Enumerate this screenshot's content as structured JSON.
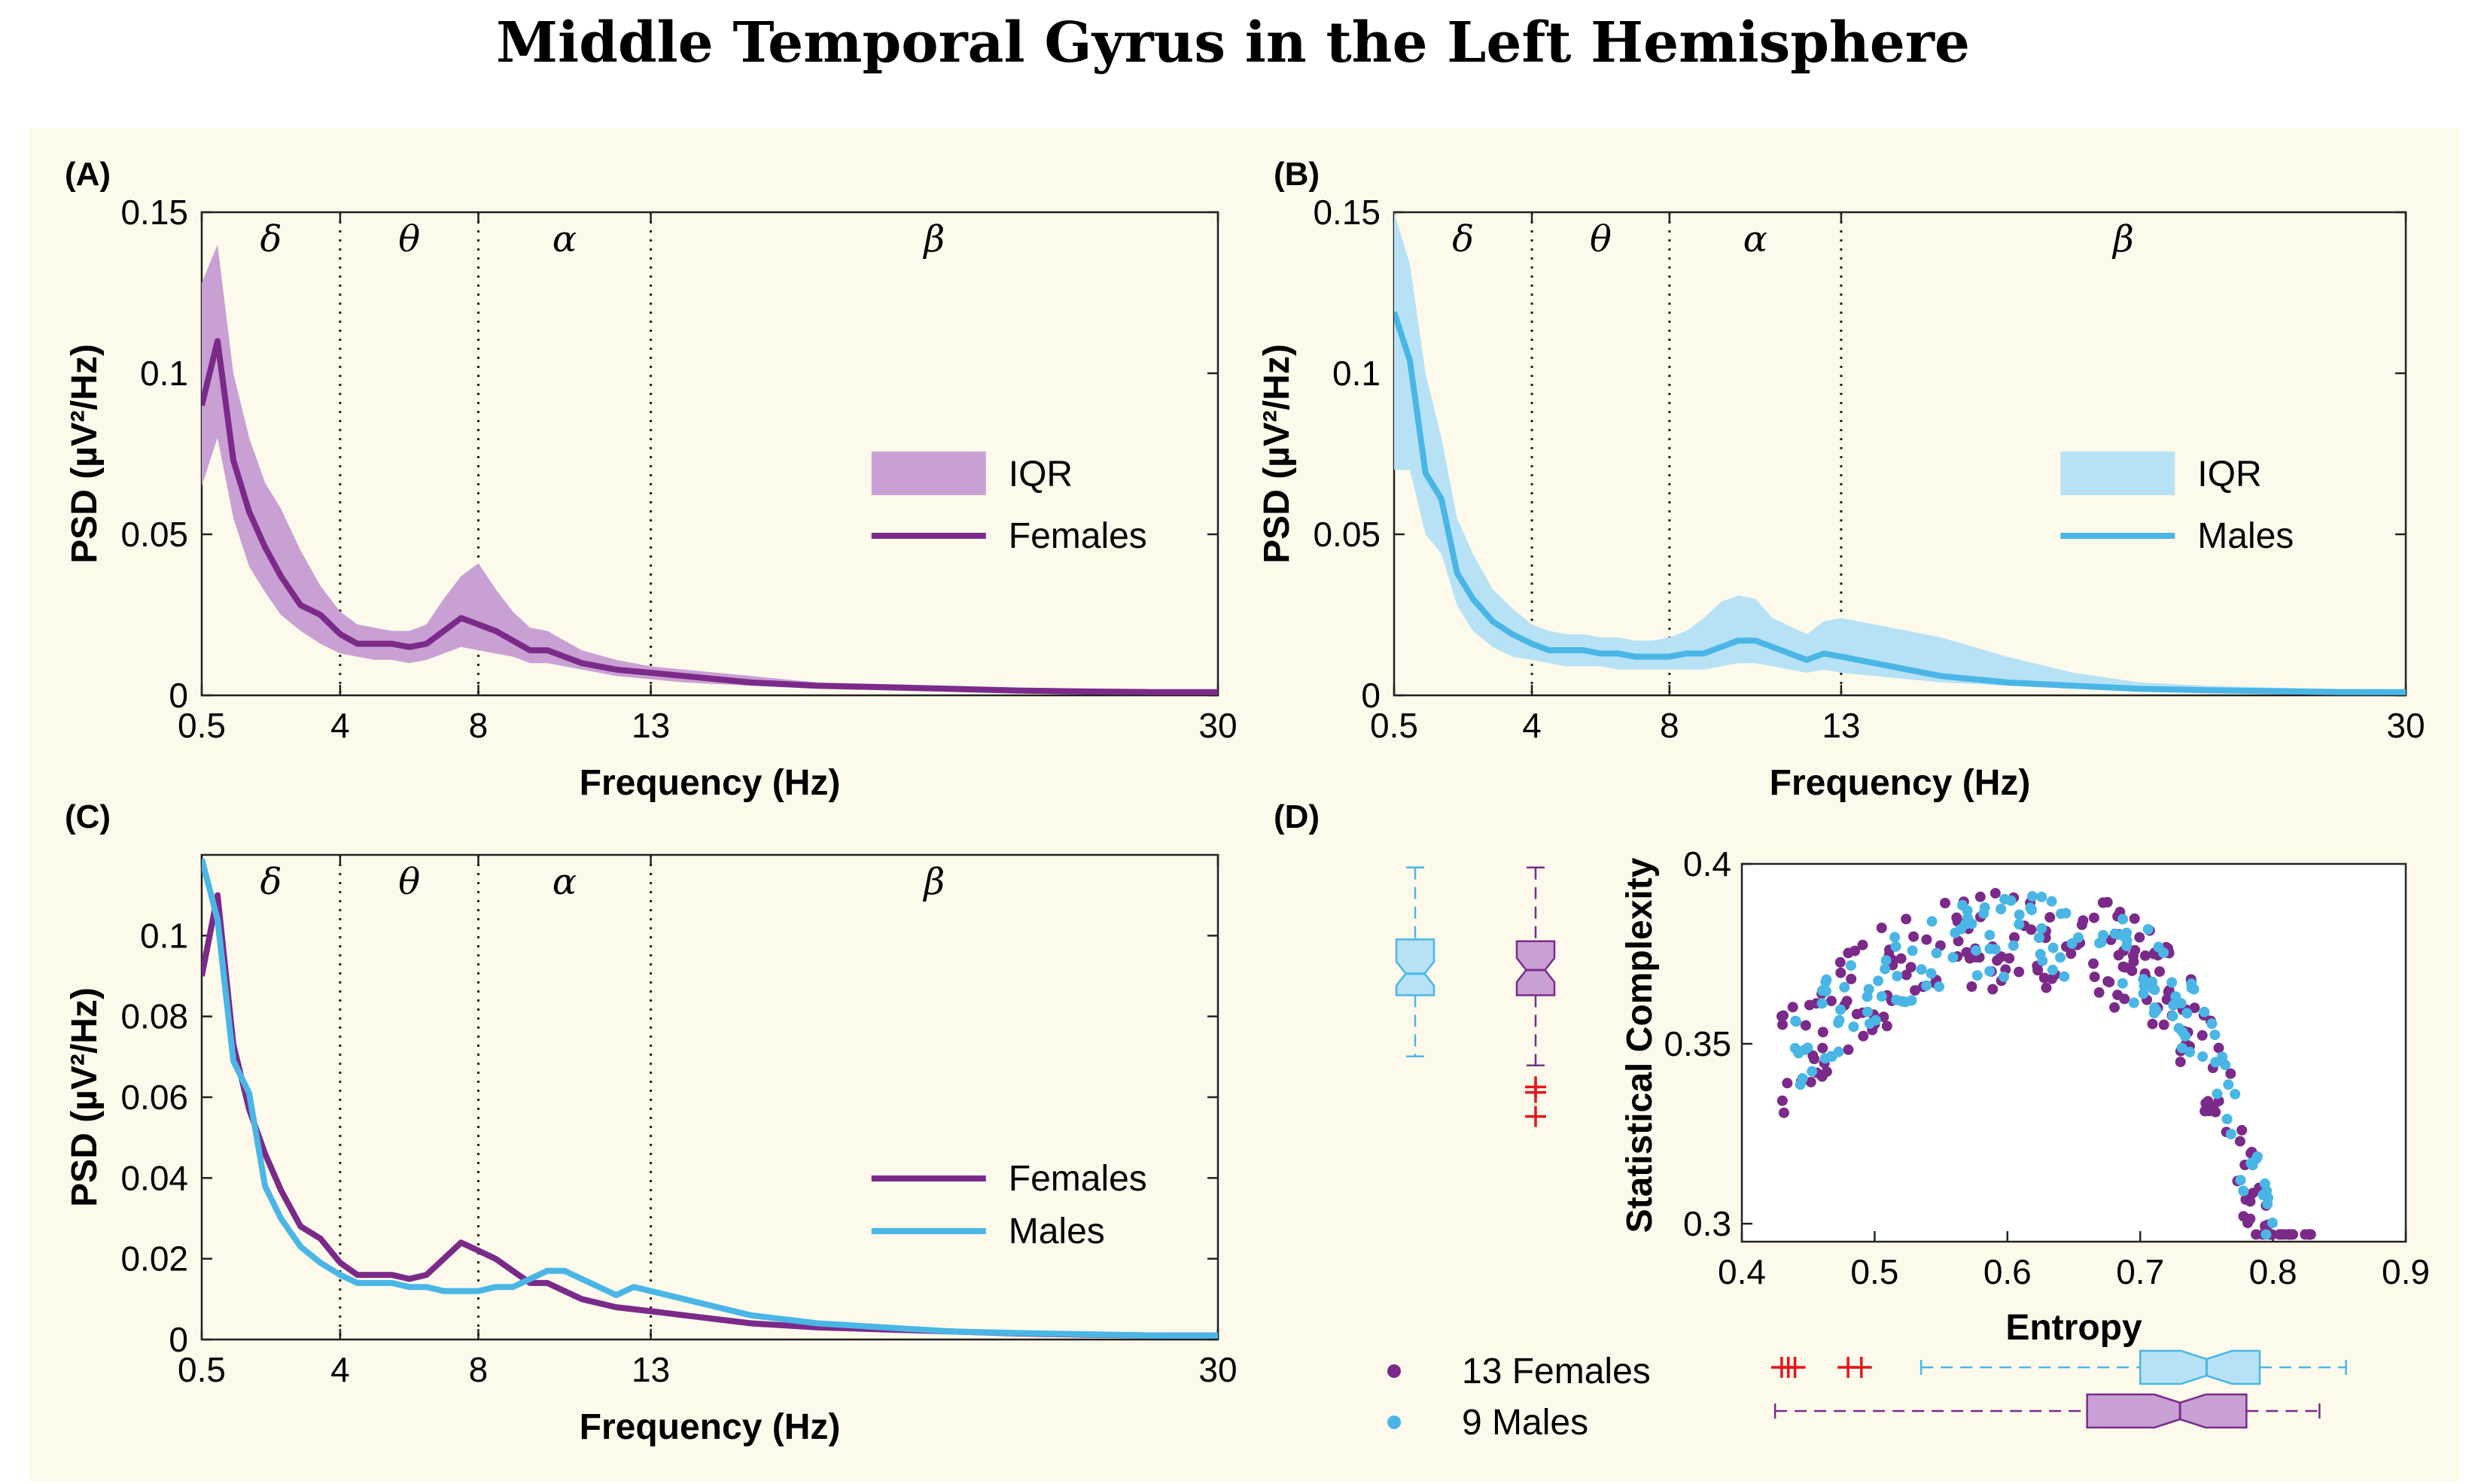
{
  "title": "Middle Temporal Gyrus in the Left Hemisphere",
  "colors": {
    "females": "#7b2a8a",
    "females_fill": "#c9a0d3",
    "males": "#49b6e6",
    "males_fill": "#b7e2f5",
    "outlier": "#e8141b",
    "background": "#fdfaeb"
  },
  "bands": [
    {
      "symbol": "δ",
      "range": [
        0.5,
        4
      ]
    },
    {
      "symbol": "θ",
      "range": [
        4,
        8
      ]
    },
    {
      "symbol": "α",
      "range": [
        8,
        13
      ]
    },
    {
      "symbol": "β",
      "range": [
        13,
        30
      ]
    }
  ],
  "chart_data": [
    {
      "panel": "(A)",
      "type": "line",
      "xlabel": "Frequency (Hz)",
      "ylabel": "PSD (µV²/Hz)",
      "xticks": [
        "0.5",
        "4",
        "8",
        "13",
        "30"
      ],
      "yticks": [
        "0",
        "0.05",
        "0.1",
        "0.15"
      ],
      "ylim": [
        0,
        0.15
      ],
      "xlim": [
        0.5,
        30
      ],
      "legend": "right",
      "legend_entries": [
        "IQR",
        "Females"
      ],
      "x": [
        0.5,
        0.9,
        1.3,
        1.7,
        2.1,
        2.5,
        3.0,
        3.5,
        4.0,
        4.5,
        5.0,
        5.5,
        6.0,
        6.5,
        7.0,
        7.5,
        8.0,
        8.5,
        9.0,
        9.5,
        10.0,
        10.5,
        11.0,
        12.0,
        13.0,
        14.0,
        16.0,
        18.0,
        20.0,
        22.0,
        24.0,
        26.0,
        28.0,
        30.0
      ],
      "series": [
        {
          "name": "Females",
          "values": [
            0.09,
            0.11,
            0.073,
            0.057,
            0.046,
            0.037,
            0.028,
            0.025,
            0.019,
            0.016,
            0.016,
            0.016,
            0.015,
            0.016,
            0.02,
            0.024,
            0.022,
            0.02,
            0.017,
            0.014,
            0.014,
            0.012,
            0.01,
            0.008,
            0.007,
            0.006,
            0.004,
            0.003,
            0.0025,
            0.002,
            0.0015,
            0.0012,
            0.001,
            0.001
          ],
          "iqr_low": [
            0.065,
            0.08,
            0.055,
            0.04,
            0.032,
            0.025,
            0.02,
            0.016,
            0.013,
            0.012,
            0.011,
            0.011,
            0.01,
            0.011,
            0.013,
            0.015,
            0.014,
            0.013,
            0.012,
            0.01,
            0.01,
            0.009,
            0.008,
            0.006,
            0.005,
            0.004,
            0.003,
            0.002,
            0.0018,
            0.0014,
            0.001,
            0.0008,
            0.0006,
            0.0005
          ],
          "iqr_high": [
            0.128,
            0.14,
            0.1,
            0.08,
            0.066,
            0.058,
            0.045,
            0.034,
            0.026,
            0.022,
            0.021,
            0.02,
            0.02,
            0.022,
            0.03,
            0.037,
            0.041,
            0.033,
            0.026,
            0.021,
            0.02,
            0.017,
            0.014,
            0.011,
            0.009,
            0.008,
            0.006,
            0.004,
            0.0035,
            0.003,
            0.0022,
            0.0018,
            0.0015,
            0.0014
          ]
        }
      ]
    },
    {
      "panel": "(B)",
      "type": "line",
      "xlabel": "Frequency (Hz)",
      "ylabel": "PSD (µV²/Hz)",
      "xticks": [
        "0.5",
        "4",
        "8",
        "13",
        "30"
      ],
      "yticks": [
        "0",
        "0.05",
        "0.1",
        "0.15"
      ],
      "ylim": [
        0,
        0.15
      ],
      "xlim": [
        0.5,
        30
      ],
      "legend": "right",
      "legend_entries": [
        "IQR",
        "Males"
      ],
      "x": [
        0.5,
        0.9,
        1.3,
        1.7,
        2.1,
        2.5,
        3.0,
        3.5,
        4.0,
        4.5,
        5.0,
        5.5,
        6.0,
        6.5,
        7.0,
        7.5,
        8.0,
        8.5,
        9.0,
        9.5,
        10.0,
        10.5,
        11.0,
        12.0,
        12.5,
        13.0,
        14.0,
        15.0,
        16.0,
        18.0,
        20.0,
        22.0,
        24.0,
        26.0,
        28.0,
        30.0
      ],
      "series": [
        {
          "name": "Males",
          "values": [
            0.119,
            0.104,
            0.069,
            0.061,
            0.038,
            0.03,
            0.023,
            0.019,
            0.016,
            0.014,
            0.014,
            0.014,
            0.013,
            0.013,
            0.012,
            0.012,
            0.012,
            0.013,
            0.013,
            0.015,
            0.017,
            0.017,
            0.015,
            0.011,
            0.013,
            0.012,
            0.01,
            0.008,
            0.006,
            0.004,
            0.003,
            0.002,
            0.0016,
            0.0013,
            0.001,
            0.001
          ],
          "iqr_low": [
            0.07,
            0.07,
            0.05,
            0.044,
            0.028,
            0.02,
            0.015,
            0.012,
            0.011,
            0.01,
            0.009,
            0.009,
            0.009,
            0.008,
            0.008,
            0.008,
            0.008,
            0.008,
            0.008,
            0.009,
            0.01,
            0.01,
            0.009,
            0.007,
            0.008,
            0.007,
            0.006,
            0.005,
            0.004,
            0.003,
            0.002,
            0.0015,
            0.0011,
            0.0009,
            0.0007,
            0.0006
          ],
          "iqr_high": [
            0.15,
            0.134,
            0.1,
            0.08,
            0.055,
            0.044,
            0.033,
            0.027,
            0.022,
            0.02,
            0.019,
            0.019,
            0.018,
            0.018,
            0.017,
            0.017,
            0.018,
            0.02,
            0.024,
            0.029,
            0.031,
            0.03,
            0.024,
            0.019,
            0.023,
            0.024,
            0.022,
            0.02,
            0.018,
            0.012,
            0.007,
            0.004,
            0.003,
            0.0024,
            0.002,
            0.0018
          ]
        }
      ]
    },
    {
      "panel": "(C)",
      "type": "line",
      "xlabel": "Frequency (Hz)",
      "ylabel": "PSD (µV²/Hz)",
      "xticks": [
        "0.5",
        "4",
        "8",
        "13",
        "30"
      ],
      "yticks": [
        "0",
        "0.02",
        "0.04",
        "0.06",
        "0.08",
        "0.1"
      ],
      "ylim": [
        0,
        0.12
      ],
      "xlim": [
        0.5,
        30
      ],
      "legend": "right",
      "series": [
        {
          "name": "Females",
          "x": [
            0.5,
            0.9,
            1.3,
            1.7,
            2.1,
            2.5,
            3.0,
            3.5,
            4.0,
            4.5,
            5.0,
            5.5,
            6.0,
            6.5,
            7.0,
            7.5,
            8.0,
            8.5,
            9.0,
            9.5,
            10.0,
            10.5,
            11.0,
            12.0,
            13.0,
            14.0,
            16.0,
            18.0,
            20.0,
            22.0,
            24.0,
            26.0,
            28.0,
            30.0
          ],
          "values": [
            0.09,
            0.11,
            0.073,
            0.057,
            0.046,
            0.037,
            0.028,
            0.025,
            0.019,
            0.016,
            0.016,
            0.016,
            0.015,
            0.016,
            0.02,
            0.024,
            0.022,
            0.02,
            0.017,
            0.014,
            0.014,
            0.012,
            0.01,
            0.008,
            0.007,
            0.006,
            0.004,
            0.003,
            0.0025,
            0.002,
            0.0015,
            0.0012,
            0.001,
            0.001
          ]
        },
        {
          "name": "Males",
          "x": [
            0.5,
            0.9,
            1.3,
            1.7,
            2.1,
            2.5,
            3.0,
            3.5,
            4.0,
            4.5,
            5.0,
            5.5,
            6.0,
            6.5,
            7.0,
            7.5,
            8.0,
            8.5,
            9.0,
            9.5,
            10.0,
            10.5,
            11.0,
            12.0,
            12.5,
            13.0,
            14.0,
            15.0,
            16.0,
            18.0,
            20.0,
            22.0,
            24.0,
            26.0,
            28.0,
            30.0
          ],
          "values": [
            0.119,
            0.104,
            0.069,
            0.061,
            0.038,
            0.03,
            0.023,
            0.019,
            0.016,
            0.014,
            0.014,
            0.014,
            0.013,
            0.013,
            0.012,
            0.012,
            0.012,
            0.013,
            0.013,
            0.015,
            0.017,
            0.017,
            0.015,
            0.011,
            0.013,
            0.012,
            0.01,
            0.008,
            0.006,
            0.004,
            0.003,
            0.002,
            0.0016,
            0.0013,
            0.001,
            0.001
          ]
        }
      ]
    },
    {
      "panel": "(D)",
      "type": "scatter",
      "xlabel": "Entropy",
      "ylabel": "Statistical Complexity",
      "xticks": [
        "0.4",
        "0.5",
        "0.6",
        "0.7",
        "0.8",
        "0.9"
      ],
      "yticks": [
        "0.3",
        "0.35",
        "0.4"
      ],
      "xlim": [
        0.4,
        0.9
      ],
      "ylim": [
        0.295,
        0.4
      ],
      "legend": "bottom-left",
      "legend_entries": [
        "13 Females",
        "9 Males"
      ],
      "series": [
        {
          "name": "13 Females",
          "seed": 7,
          "n": 220
        },
        {
          "name": "9 Males",
          "seed": 19,
          "n": 150
        }
      ],
      "boxplots_vertical": [
        {
          "series": "9 Males",
          "whisker_low": 0.3465,
          "q1": 0.3635,
          "median": 0.3695,
          "q3": 0.379,
          "whisker_high": 0.399,
          "outliers": []
        },
        {
          "series": "13 Females",
          "whisker_low": 0.344,
          "q1": 0.3635,
          "median": 0.3705,
          "q3": 0.3785,
          "whisker_high": 0.399,
          "outliers": [
            0.338,
            0.3365,
            0.3298
          ]
        }
      ],
      "boxplots_horizontal": [
        {
          "series": "9 Males",
          "whisker_low": 0.535,
          "q1": 0.7,
          "median": 0.75,
          "q3": 0.79,
          "whisker_high": 0.855,
          "outliers": [
            0.43,
            0.435,
            0.44,
            0.48,
            0.49
          ]
        },
        {
          "series": "13 Females",
          "whisker_low": 0.425,
          "q1": 0.66,
          "median": 0.73,
          "q3": 0.78,
          "whisker_high": 0.835,
          "outliers": []
        }
      ]
    }
  ]
}
